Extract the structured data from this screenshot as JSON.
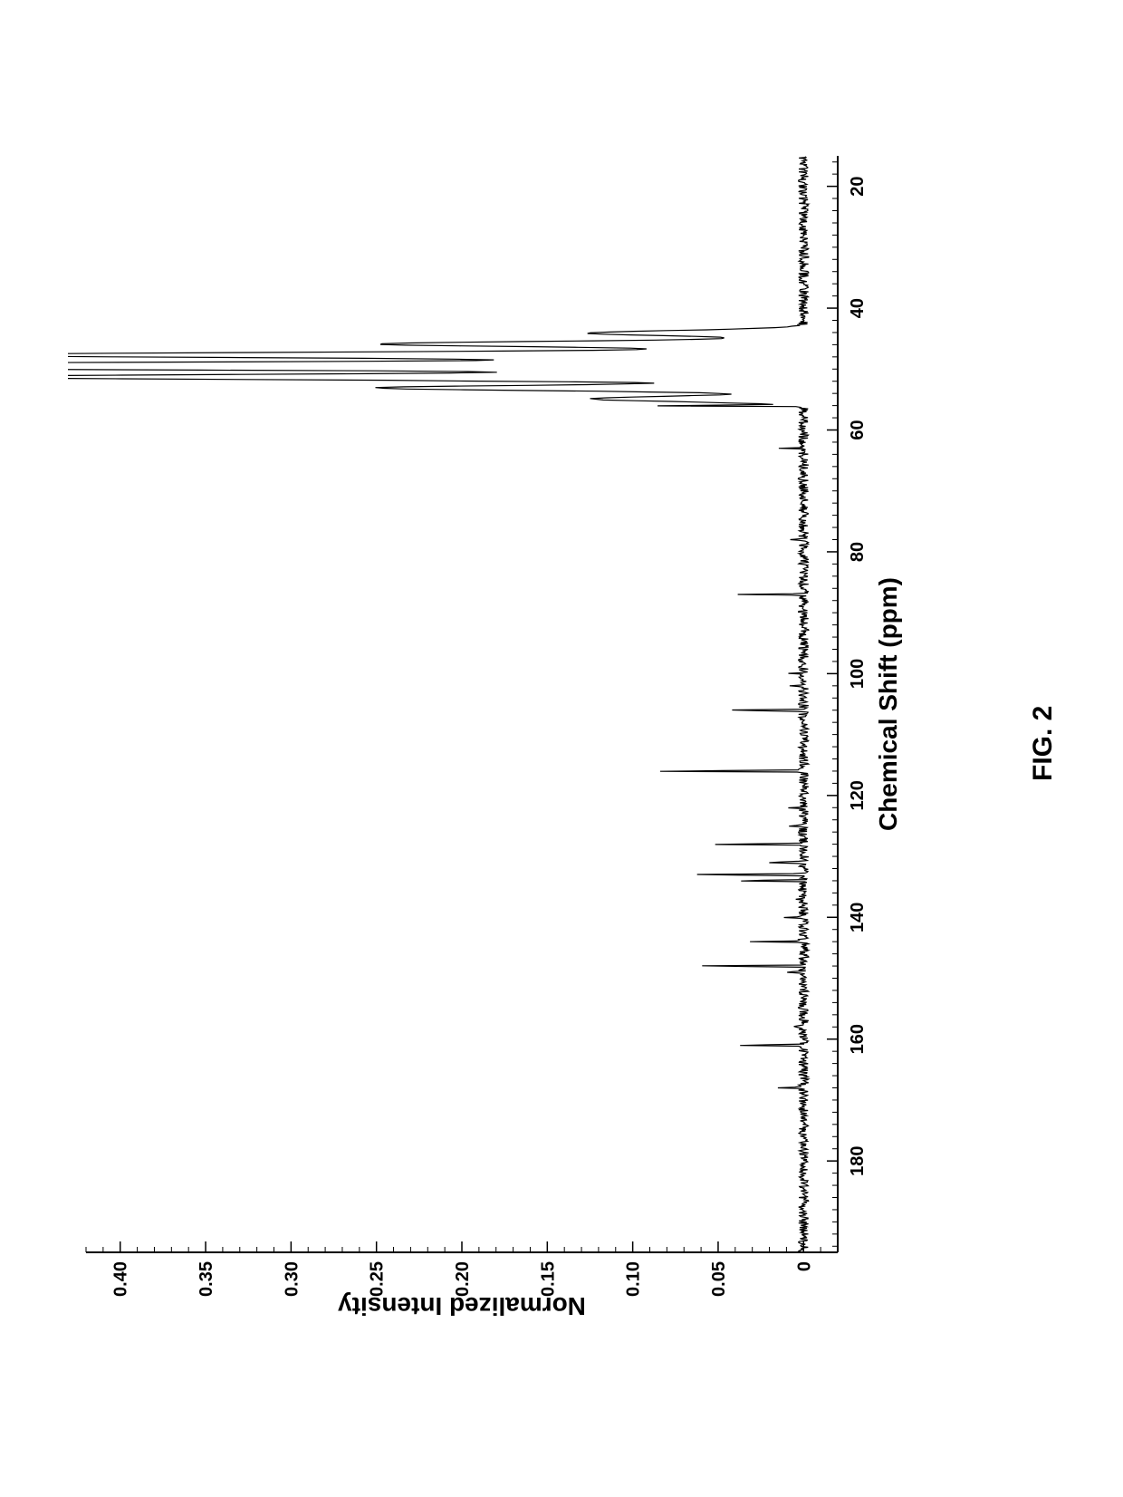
{
  "figure_label": "FIG. 2",
  "nmr_spectrum": {
    "type": "line",
    "xlabel": "Chemical Shift (ppm)",
    "ylabel": "Normalized Intensity",
    "label_fontsize": 28,
    "tick_fontsize": 20,
    "background_color": "#ffffff",
    "line_color": "#000000",
    "axis_color": "#000000",
    "x_reversed": true,
    "xlim": [
      195,
      15
    ],
    "xticks": [
      180,
      160,
      140,
      120,
      100,
      80,
      60,
      40,
      20
    ],
    "x_minor_step": 2,
    "ylim": [
      -0.02,
      0.42
    ],
    "yticks": [
      0,
      0.05,
      0.1,
      0.15,
      0.2,
      0.25,
      0.3,
      0.35,
      0.4
    ],
    "ytick_labels": [
      "0",
      "0.05",
      "0.10",
      "0.15",
      "0.20",
      "0.25",
      "0.30",
      "0.35",
      "0.40"
    ],
    "y_minor_step": 0.01,
    "baseline_noise_amplitude": 0.003,
    "peaks": [
      {
        "ppm": 168,
        "intensity": 0.018
      },
      {
        "ppm": 161,
        "intensity": 0.045
      },
      {
        "ppm": 158,
        "intensity": 0.008
      },
      {
        "ppm": 149,
        "intensity": 0.012
      },
      {
        "ppm": 148,
        "intensity": 0.072
      },
      {
        "ppm": 144,
        "intensity": 0.03
      },
      {
        "ppm": 140,
        "intensity": 0.012
      },
      {
        "ppm": 137,
        "intensity": 0.008
      },
      {
        "ppm": 134,
        "intensity": 0.048
      },
      {
        "ppm": 133,
        "intensity": 0.078
      },
      {
        "ppm": 131,
        "intensity": 0.025
      },
      {
        "ppm": 128,
        "intensity": 0.06
      },
      {
        "ppm": 125,
        "intensity": 0.012
      },
      {
        "ppm": 122,
        "intensity": 0.008
      },
      {
        "ppm": 116,
        "intensity": 0.105
      },
      {
        "ppm": 106,
        "intensity": 0.055
      },
      {
        "ppm": 102,
        "intensity": 0.01
      },
      {
        "ppm": 100,
        "intensity": 0.008
      },
      {
        "ppm": 87,
        "intensity": 0.04
      },
      {
        "ppm": 78,
        "intensity": 0.006
      },
      {
        "ppm": 68,
        "intensity": 0.006
      },
      {
        "ppm": 63,
        "intensity": 0.012
      },
      {
        "ppm": 56,
        "intensity": 0.1
      },
      {
        "ppm": 52,
        "intensity": 0.028
      },
      {
        "ppm": 49.5,
        "intensity": 1.0,
        "width": 1.8,
        "multiplet": 7
      }
    ]
  }
}
